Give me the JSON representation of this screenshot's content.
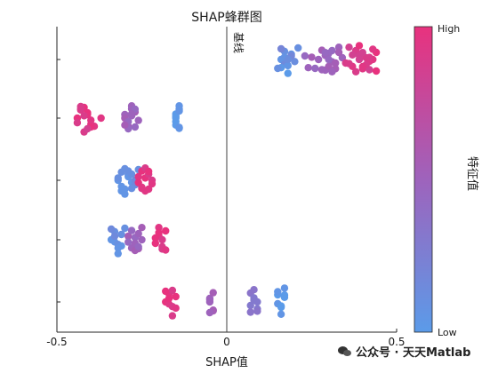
{
  "chart_data": {
    "type": "scatter",
    "title": "SHAP蜂群图",
    "xlabel": "SHAP值",
    "ylabel": "",
    "xlim": [
      -0.5,
      0.5
    ],
    "xticks": [
      "-0.5",
      "0",
      "0.5"
    ],
    "baseline": {
      "x": 0,
      "label": "基线"
    },
    "colorbar": {
      "label": "特征值",
      "high": "High",
      "low": "Low",
      "high_color": "#E8327E",
      "low_color": "#5B9BE9"
    },
    "features": [
      {
        "row": 1,
        "clusters": [
          {
            "x": [
              0.16,
              0.17,
              0.18,
              0.19,
              0.2,
              0.17,
              0.16,
              0.18,
              0.21,
              0.19,
              0.16,
              0.17,
              0.15,
              0.18
            ],
            "v": [
              0.05,
              0.1,
              0.0,
              0.08,
              0.12,
              0.15,
              0.2,
              0.05,
              0.1,
              0.18,
              0.02,
              0.07,
              0.1,
              0.12
            ]
          },
          {
            "x": [
              0.23,
              0.24,
              0.25,
              0.26,
              0.27,
              0.28,
              0.29,
              0.3,
              0.31,
              0.32,
              0.33,
              0.3,
              0.31,
              0.29,
              0.32,
              0.34,
              0.28,
              0.3,
              0.33,
              0.31,
              0.29
            ],
            "v": [
              0.45,
              0.5,
              0.55,
              0.45,
              0.5,
              0.55,
              0.5,
              0.45,
              0.5,
              0.55,
              0.5,
              0.55,
              0.45,
              0.5,
              0.55,
              0.5,
              0.5,
              0.45,
              0.55,
              0.5,
              0.45
            ]
          },
          {
            "x": [
              0.35,
              0.36,
              0.37,
              0.38,
              0.39,
              0.4,
              0.41,
              0.42,
              0.43,
              0.44,
              0.38,
              0.4,
              0.42,
              0.36,
              0.39,
              0.41,
              0.43,
              0.37,
              0.4,
              0.42,
              0.44,
              0.39
            ],
            "v": [
              0.9,
              0.85,
              0.95,
              0.9,
              0.85,
              0.95,
              0.9,
              0.85,
              0.95,
              1.0,
              0.9,
              0.85,
              0.95,
              0.9,
              1.0,
              0.9,
              0.95,
              0.85,
              0.95,
              0.9,
              1.0,
              0.85
            ]
          }
        ]
      },
      {
        "row": 2,
        "clusters": [
          {
            "x": [
              -0.44,
              -0.43,
              -0.42,
              -0.41,
              -0.4,
              -0.44,
              -0.42,
              -0.4,
              -0.43,
              -0.41,
              -0.39,
              -0.42,
              -0.4,
              -0.37,
              -0.43,
              -0.41
            ],
            "v": [
              1.0,
              0.95,
              0.9,
              1.0,
              0.95,
              0.9,
              1.0,
              0.95,
              0.9,
              1.0,
              0.95,
              0.9,
              1.0,
              0.95,
              0.9,
              0.85
            ]
          },
          {
            "x": [
              -0.3,
              -0.29,
              -0.28,
              -0.27,
              -0.3,
              -0.28,
              -0.29,
              -0.27,
              -0.26,
              -0.29,
              -0.28,
              -0.3,
              -0.27,
              -0.28
            ],
            "v": [
              0.5,
              0.55,
              0.5,
              0.45,
              0.55,
              0.5,
              0.45,
              0.55,
              0.5,
              0.45,
              0.5,
              0.55,
              0.45,
              0.5
            ]
          },
          {
            "x": [
              -0.15,
              -0.14,
              -0.15,
              -0.14,
              -0.15,
              -0.14,
              -0.15,
              -0.14,
              -0.15,
              -0.14
            ],
            "v": [
              0.0,
              0.05,
              0.0,
              0.05,
              0.0,
              0.05,
              0.0,
              0.05,
              0.0,
              0.05
            ]
          }
        ]
      },
      {
        "row": 3,
        "clusters": [
          {
            "x": [
              -0.32,
              -0.31,
              -0.3,
              -0.29,
              -0.28,
              -0.27,
              -0.26,
              -0.31,
              -0.3,
              -0.29,
              -0.28,
              -0.32,
              -0.3,
              -0.27,
              -0.29,
              -0.31,
              -0.28
            ],
            "v": [
              0.05,
              0.1,
              0.05,
              0.1,
              0.05,
              0.15,
              0.1,
              0.05,
              0.1,
              0.05,
              0.1,
              0.1,
              0.05,
              0.15,
              0.1,
              0.05,
              0.1
            ]
          },
          {
            "x": [
              -0.26,
              -0.25,
              -0.24,
              -0.23,
              -0.22,
              -0.25,
              -0.24,
              -0.23,
              -0.26,
              -0.22,
              -0.24,
              -0.25,
              -0.23
            ],
            "v": [
              0.95,
              0.9,
              1.0,
              0.95,
              0.9,
              1.0,
              0.95,
              0.9,
              1.0,
              0.95,
              0.9,
              0.95,
              1.0
            ]
          }
        ]
      },
      {
        "row": 4,
        "clusters": [
          {
            "x": [
              -0.34,
              -0.33,
              -0.32,
              -0.31,
              -0.33,
              -0.32,
              -0.34,
              -0.31,
              -0.3,
              -0.33,
              -0.32
            ],
            "v": [
              0.05,
              0.1,
              0.05,
              0.1,
              0.05,
              0.1,
              0.15,
              0.05,
              0.1,
              0.15,
              0.05
            ]
          },
          {
            "x": [
              -0.29,
              -0.28,
              -0.27,
              -0.26,
              -0.25,
              -0.28,
              -0.27,
              -0.26,
              -0.29,
              -0.27,
              -0.25,
              -0.26
            ],
            "v": [
              0.55,
              0.5,
              0.45,
              0.55,
              0.5,
              0.45,
              0.55,
              0.5,
              0.45,
              0.5,
              0.55,
              0.45
            ]
          },
          {
            "x": [
              -0.21,
              -0.2,
              -0.19,
              -0.18,
              -0.2,
              -0.19,
              -0.21,
              -0.18,
              -0.19,
              -0.2
            ],
            "v": [
              1.0,
              0.95,
              0.9,
              1.0,
              0.95,
              0.9,
              1.0,
              0.95,
              0.9,
              1.0
            ]
          }
        ]
      },
      {
        "row": 5,
        "clusters": [
          {
            "x": [
              -0.18,
              -0.17,
              -0.16,
              -0.15,
              -0.17,
              -0.16,
              -0.18,
              -0.15,
              -0.16,
              -0.17
            ],
            "v": [
              1.0,
              0.95,
              0.9,
              1.0,
              0.95,
              0.9,
              1.0,
              0.95,
              0.9,
              1.0
            ]
          },
          {
            "x": [
              -0.05,
              -0.04,
              -0.05,
              -0.04,
              -0.05,
              -0.04,
              -0.05
            ],
            "v": [
              0.5,
              0.55,
              0.5,
              0.55,
              0.5,
              0.55,
              0.5
            ]
          },
          {
            "x": [
              0.07,
              0.08,
              0.09,
              0.07,
              0.08,
              0.09,
              0.08,
              0.07,
              0.09
            ],
            "v": [
              0.3,
              0.35,
              0.3,
              0.35,
              0.3,
              0.35,
              0.3,
              0.35,
              0.3
            ]
          },
          {
            "x": [
              0.15,
              0.16,
              0.17,
              0.15,
              0.16,
              0.17,
              0.16,
              0.15,
              0.17
            ],
            "v": [
              0.0,
              0.05,
              0.0,
              0.05,
              0.0,
              0.05,
              0.0,
              0.05,
              0.0
            ]
          }
        ]
      }
    ]
  },
  "watermark": "公众号 · 天天Matlab"
}
